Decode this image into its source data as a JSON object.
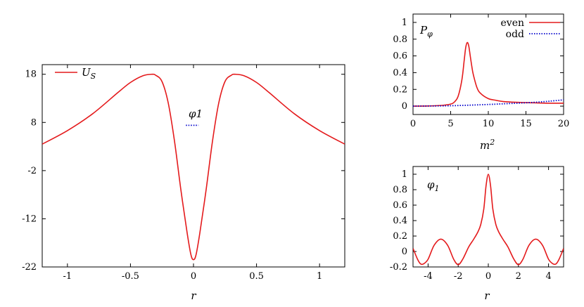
{
  "chart_data": [
    {
      "id": "potential",
      "type": "line",
      "xlabel": "r",
      "ylabel": "",
      "xlim": [
        -1.2,
        1.2
      ],
      "ylim": [
        -22,
        20
      ],
      "xticks": [
        "-1",
        "-0.5",
        "0",
        "0.5",
        "1"
      ],
      "xtick_values": [
        -1,
        -0.5,
        0,
        0.5,
        1
      ],
      "yticks": [
        "18",
        "8",
        "-2",
        "-12",
        "-22"
      ],
      "ytick_values": [
        18,
        8,
        -2,
        -12,
        -22
      ],
      "legend": "top-left",
      "annotation": "φ1",
      "series": [
        {
          "name": "U_S",
          "label_main": "U",
          "label_sub": "S",
          "color": "#e41a1c",
          "x": [
            -1.2,
            -1.0,
            -0.8,
            -0.6,
            -0.5,
            -0.4,
            -0.33,
            -0.3,
            -0.25,
            -0.2,
            -0.15,
            -0.1,
            -0.05,
            -0.02,
            0,
            0.02,
            0.05,
            0.1,
            0.15,
            0.2,
            0.25,
            0.3,
            0.33,
            0.4,
            0.5,
            0.6,
            0.8,
            1.0,
            1.2
          ],
          "values": [
            3.5,
            6.3,
            9.8,
            14.2,
            16.3,
            17.7,
            18.0,
            17.8,
            16.5,
            12.0,
            4.0,
            -6.0,
            -15.0,
            -19.5,
            -20.5,
            -19.5,
            -15.0,
            -6.0,
            4.0,
            12.0,
            16.5,
            17.8,
            18.0,
            17.7,
            16.3,
            14.2,
            9.8,
            6.3,
            3.5
          ]
        },
        {
          "name": "φ1 level",
          "color": "#0000cc",
          "style": "dotted",
          "x": [
            -0.06,
            0.04
          ],
          "values": [
            7.4,
            7.4
          ]
        }
      ]
    },
    {
      "id": "probability",
      "type": "line",
      "title": "P_φ",
      "title_main": "P",
      "title_sub": "φ",
      "xlabel": "m²",
      "xlabel_main": "m",
      "xlabel_sup": "2",
      "ylabel": "",
      "xlim": [
        0,
        20
      ],
      "ylim": [
        -0.1,
        1.1
      ],
      "xticks": [
        "0",
        "5",
        "10",
        "15",
        "20"
      ],
      "xtick_values": [
        0,
        5,
        10,
        15,
        20
      ],
      "yticks": [
        "0",
        "0.2",
        "0.4",
        "0.6",
        "0.8",
        "1"
      ],
      "ytick_values": [
        0,
        0.2,
        0.4,
        0.6,
        0.8,
        1
      ],
      "legend": "top-right",
      "series": [
        {
          "name": "even",
          "color": "#e41a1c",
          "style": "solid",
          "x": [
            0,
            2,
            4,
            5,
            5.5,
            6,
            6.5,
            6.8,
            7.0,
            7.2,
            7.4,
            7.6,
            7.8,
            8.0,
            8.5,
            9,
            10,
            11,
            12,
            14,
            16,
            18,
            20
          ],
          "values": [
            0.0,
            0.002,
            0.01,
            0.025,
            0.05,
            0.12,
            0.32,
            0.55,
            0.7,
            0.76,
            0.72,
            0.6,
            0.48,
            0.38,
            0.22,
            0.15,
            0.09,
            0.07,
            0.055,
            0.045,
            0.04,
            0.035,
            0.035
          ]
        },
        {
          "name": "odd",
          "color": "#0000cc",
          "style": "dotted",
          "x": [
            0,
            5,
            10,
            12,
            14,
            16,
            18,
            20
          ],
          "values": [
            0.0,
            0.005,
            0.02,
            0.028,
            0.036,
            0.045,
            0.058,
            0.075
          ]
        }
      ]
    },
    {
      "id": "wavefunction",
      "type": "line",
      "title": "φ1",
      "title_main": "φ",
      "title_sub": "1",
      "xlabel": "r",
      "ylabel": "",
      "xlim": [
        -5,
        5
      ],
      "ylim": [
        -0.2,
        1.1
      ],
      "xticks": [
        "-4",
        "-2",
        "0",
        "2",
        "4"
      ],
      "xtick_values": [
        -4,
        -2,
        0,
        2,
        4
      ],
      "yticks": [
        "-0.2",
        "0",
        "0.2",
        "0.4",
        "0.6",
        "0.8",
        "1"
      ],
      "ytick_values": [
        -0.2,
        0,
        0.2,
        0.4,
        0.6,
        0.8,
        1
      ],
      "series": [
        {
          "name": "φ1",
          "color": "#e41a1c",
          "x": [
            -5,
            -4.7,
            -4.5,
            -4.3,
            -4.0,
            -3.6,
            -3.15,
            -2.7,
            -2.3,
            -2.0,
            -1.7,
            -1.3,
            -1.0,
            -0.7,
            -0.5,
            -0.3,
            -0.15,
            0,
            0.15,
            0.3,
            0.5,
            0.7,
            1.0,
            1.3,
            1.7,
            2.0,
            2.3,
            2.7,
            3.15,
            3.6,
            4.0,
            4.3,
            4.5,
            4.7,
            5
          ],
          "values": [
            0.04,
            -0.1,
            -0.16,
            -0.16,
            -0.1,
            0.08,
            0.16,
            0.08,
            -0.1,
            -0.17,
            -0.1,
            0.06,
            0.15,
            0.25,
            0.35,
            0.55,
            0.85,
            1.0,
            0.85,
            0.55,
            0.35,
            0.25,
            0.15,
            0.06,
            -0.1,
            -0.17,
            -0.1,
            0.08,
            0.16,
            0.08,
            -0.1,
            -0.16,
            -0.16,
            -0.1,
            0.04
          ]
        }
      ]
    }
  ]
}
